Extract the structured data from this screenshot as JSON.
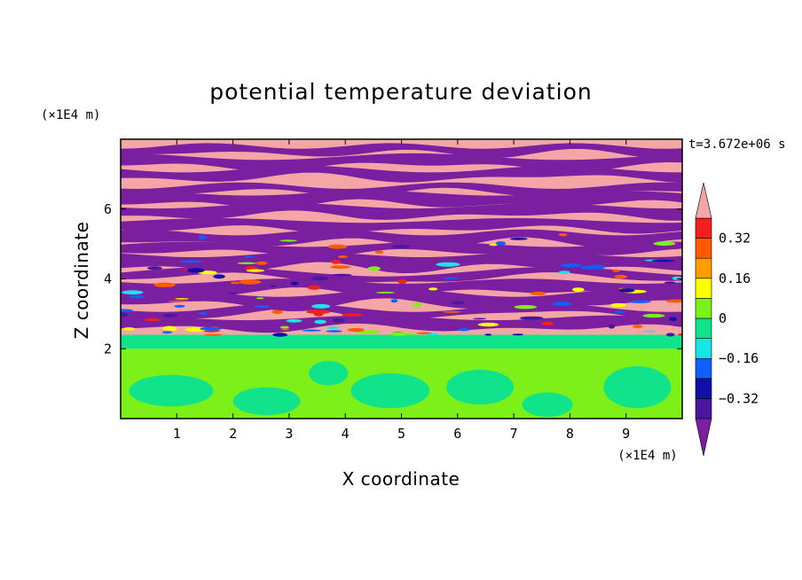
{
  "chart_data": {
    "type": "heatmap",
    "title": "potential temperature deviation",
    "xlabel": "X coordinate",
    "ylabel": "Z coordinate",
    "x_unit": "(×1E4 m)",
    "y_unit": "(×1E4 m)",
    "time_label": "t=3.672e+06 s",
    "xlim": [
      0,
      10
    ],
    "ylim": [
      0,
      8
    ],
    "x_ticks": [
      1,
      2,
      3,
      4,
      5,
      6,
      7,
      8,
      9
    ],
    "y_ticks": [
      2,
      4,
      6
    ],
    "colorbar": {
      "levels": [
        -0.4,
        -0.32,
        -0.24,
        -0.16,
        -0.08,
        0,
        0.08,
        0.16,
        0.24,
        0.32,
        0.4
      ],
      "tick_values": [
        -0.32,
        -0.16,
        0,
        0.16,
        0.32
      ],
      "tick_labels": [
        "−0.32",
        "−0.16",
        "0",
        "0.16",
        "0.32"
      ],
      "colors": [
        "#7a1fa0",
        "#4a169e",
        "#1010a8",
        "#1060ff",
        "#18e6e6",
        "#10e38a",
        "#7cf018",
        "#ffff00",
        "#ff9c00",
        "#ff5a00",
        "#f02020",
        "#f4a6a6"
      ],
      "extend": "both"
    },
    "field_description_layers": [
      {
        "z_range": [
          0,
          2
        ],
        "dominant": "#7cf018",
        "secondary": "#10e38a"
      },
      {
        "z_range": [
          2,
          2.4
        ],
        "dominant": "#10e38a"
      },
      {
        "z_range": [
          2.4,
          8
        ],
        "pattern": "alternating bands",
        "colors": [
          "#f4a6a6",
          "#7a1fa0"
        ]
      }
    ]
  }
}
